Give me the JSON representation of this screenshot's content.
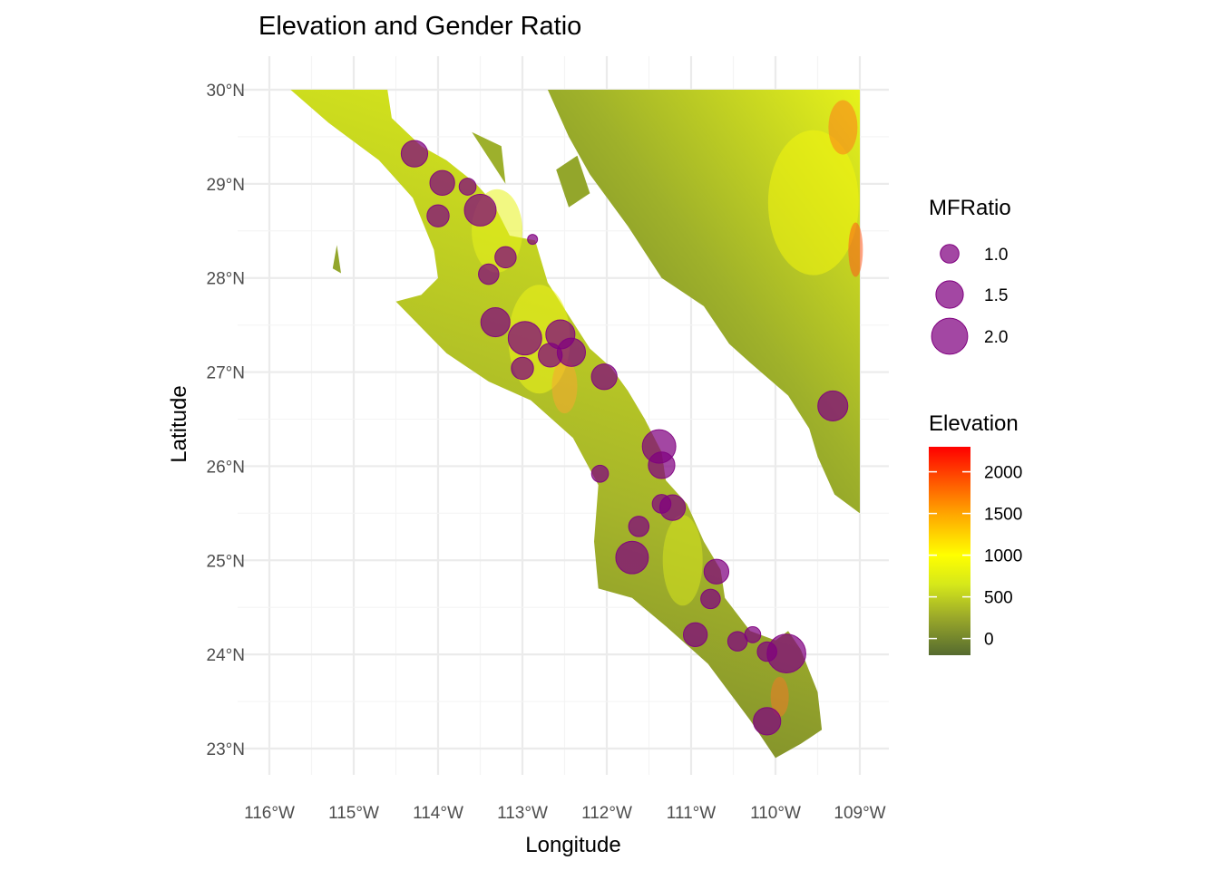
{
  "chart_data": {
    "type": "scatter",
    "title": "Elevation and Gender Ratio",
    "xlabel": "Longitude",
    "ylabel": "Latitude",
    "xlim": [
      -116,
      -109
    ],
    "ylim": [
      23,
      30
    ],
    "x_ticks": [
      -116,
      -115,
      -114,
      -113,
      -112,
      -111,
      -110,
      -109
    ],
    "x_tick_labels": [
      "116°W",
      "115°W",
      "114°W",
      "113°W",
      "112°W",
      "111°W",
      "110°W",
      "109°W"
    ],
    "y_ticks": [
      23,
      24,
      25,
      26,
      27,
      28,
      29,
      30
    ],
    "y_tick_labels": [
      "23°N",
      "24°N",
      "25°N",
      "26°N",
      "27°N",
      "28°N",
      "29°N",
      "30°N"
    ],
    "point_color": "#800080",
    "points": [
      {
        "lon": -114.28,
        "lat": 29.32,
        "mfratio": 1.45
      },
      {
        "lon": -113.95,
        "lat": 29.01,
        "mfratio": 1.35
      },
      {
        "lon": -113.65,
        "lat": 28.97,
        "mfratio": 0.9
      },
      {
        "lon": -113.5,
        "lat": 28.72,
        "mfratio": 1.75
      },
      {
        "lon": -114.0,
        "lat": 28.66,
        "mfratio": 1.2
      },
      {
        "lon": -112.88,
        "lat": 28.41,
        "mfratio": 0.5
      },
      {
        "lon": -113.2,
        "lat": 28.22,
        "mfratio": 1.15
      },
      {
        "lon": -113.4,
        "lat": 28.04,
        "mfratio": 1.1
      },
      {
        "lon": -113.32,
        "lat": 27.53,
        "mfratio": 1.6
      },
      {
        "lon": -112.97,
        "lat": 27.36,
        "mfratio": 1.85
      },
      {
        "lon": -112.55,
        "lat": 27.4,
        "mfratio": 1.6
      },
      {
        "lon": -112.67,
        "lat": 27.18,
        "mfratio": 1.3
      },
      {
        "lon": -112.42,
        "lat": 27.21,
        "mfratio": 1.55
      },
      {
        "lon": -113.0,
        "lat": 27.04,
        "mfratio": 1.2
      },
      {
        "lon": -112.03,
        "lat": 26.95,
        "mfratio": 1.4
      },
      {
        "lon": -109.32,
        "lat": 26.64,
        "mfratio": 1.65
      },
      {
        "lon": -111.38,
        "lat": 26.21,
        "mfratio": 1.85
      },
      {
        "lon": -111.35,
        "lat": 26.01,
        "mfratio": 1.45
      },
      {
        "lon": -112.08,
        "lat": 25.92,
        "mfratio": 0.9
      },
      {
        "lon": -111.35,
        "lat": 25.6,
        "mfratio": 1.0
      },
      {
        "lon": -111.22,
        "lat": 25.56,
        "mfratio": 1.4
      },
      {
        "lon": -111.62,
        "lat": 25.36,
        "mfratio": 1.1
      },
      {
        "lon": -111.7,
        "lat": 25.03,
        "mfratio": 1.8
      },
      {
        "lon": -110.7,
        "lat": 24.88,
        "mfratio": 1.35
      },
      {
        "lon": -110.77,
        "lat": 24.59,
        "mfratio": 1.05
      },
      {
        "lon": -110.27,
        "lat": 24.21,
        "mfratio": 0.85
      },
      {
        "lon": -110.95,
        "lat": 24.21,
        "mfratio": 1.3
      },
      {
        "lon": -110.45,
        "lat": 24.14,
        "mfratio": 1.05
      },
      {
        "lon": -110.1,
        "lat": 24.03,
        "mfratio": 1.05
      },
      {
        "lon": -109.87,
        "lat": 24.01,
        "mfratio": 2.15
      },
      {
        "lon": -110.1,
        "lat": 23.29,
        "mfratio": 1.5
      }
    ],
    "legend_size": {
      "title": "MFRatio",
      "items": [
        {
          "label": "1.0",
          "value": 1.0
        },
        {
          "label": "1.5",
          "value": 1.5
        },
        {
          "label": "2.0",
          "value": 2.0
        }
      ]
    },
    "legend_color": {
      "title": "Elevation",
      "range": [
        -200,
        2300
      ],
      "ticks": [
        2000,
        1500,
        1000,
        500,
        0
      ],
      "tick_labels": [
        "2000",
        "1500",
        "1000",
        "500",
        "0"
      ],
      "gradient": [
        {
          "value": -200,
          "color": "#556b2f"
        },
        {
          "value": 250,
          "color": "#9aa82a"
        },
        {
          "value": 650,
          "color": "#d6e81a"
        },
        {
          "value": 1000,
          "color": "#ffff00"
        },
        {
          "value": 1500,
          "color": "#ffa500"
        },
        {
          "value": 2300,
          "color": "#ff0000"
        }
      ]
    },
    "land": {
      "peninsula": [
        [
          -115.75,
          30
        ],
        [
          -114.6,
          30
        ],
        [
          -114.55,
          29.7
        ],
        [
          -114.2,
          29.4
        ],
        [
          -113.9,
          29.25
        ],
        [
          -113.55,
          29.0
        ],
        [
          -113.35,
          28.8
        ],
        [
          -113.15,
          28.45
        ],
        [
          -112.85,
          28.4
        ],
        [
          -112.7,
          27.95
        ],
        [
          -112.45,
          27.6
        ],
        [
          -112.2,
          27.25
        ],
        [
          -111.95,
          27.05
        ],
        [
          -111.75,
          26.8
        ],
        [
          -111.55,
          26.5
        ],
        [
          -111.35,
          26.15
        ],
        [
          -111.3,
          25.85
        ],
        [
          -111.05,
          25.6
        ],
        [
          -110.85,
          25.2
        ],
        [
          -110.65,
          24.9
        ],
        [
          -110.6,
          24.6
        ],
        [
          -110.3,
          24.25
        ],
        [
          -110.0,
          24.15
        ],
        [
          -109.85,
          24.25
        ],
        [
          -109.7,
          24.05
        ],
        [
          -109.5,
          23.6
        ],
        [
          -109.45,
          23.2
        ],
        [
          -109.7,
          23.05
        ],
        [
          -110.0,
          22.9
        ],
        [
          -110.3,
          23.3
        ],
        [
          -110.8,
          23.9
        ],
        [
          -111.3,
          24.3
        ],
        [
          -111.7,
          24.6
        ],
        [
          -112.1,
          24.7
        ],
        [
          -112.15,
          25.2
        ],
        [
          -112.1,
          25.8
        ],
        [
          -112.4,
          26.3
        ],
        [
          -112.9,
          26.7
        ],
        [
          -113.4,
          26.9
        ],
        [
          -113.9,
          27.2
        ],
        [
          -114.5,
          27.75
        ],
        [
          -114.2,
          27.82
        ],
        [
          -114.0,
          28.0
        ],
        [
          -114.05,
          28.3
        ],
        [
          -114.3,
          28.85
        ],
        [
          -114.7,
          29.25
        ],
        [
          -115.3,
          29.65
        ]
      ],
      "mainland": [
        [
          -112.7,
          30
        ],
        [
          -109.0,
          30
        ],
        [
          -109.0,
          25.5
        ],
        [
          -109.3,
          25.7
        ],
        [
          -109.5,
          26.1
        ],
        [
          -109.6,
          26.4
        ],
        [
          -109.85,
          26.75
        ],
        [
          -110.3,
          27.1
        ],
        [
          -110.55,
          27.3
        ],
        [
          -110.85,
          27.7
        ],
        [
          -111.35,
          28.0
        ],
        [
          -111.75,
          28.55
        ],
        [
          -112.2,
          29.1
        ],
        [
          -112.45,
          29.5
        ]
      ],
      "island_angel": [
        [
          -113.6,
          29.55
        ],
        [
          -113.2,
          29.0
        ],
        [
          -113.25,
          29.4
        ]
      ],
      "island_tiburon": [
        [
          -112.6,
          29.15
        ],
        [
          -112.35,
          29.3
        ],
        [
          -112.2,
          28.9
        ],
        [
          -112.45,
          28.75
        ]
      ],
      "island_cedros": [
        [
          -115.2,
          28.35
        ],
        [
          -115.15,
          28.05
        ],
        [
          -115.25,
          28.1
        ]
      ]
    }
  }
}
